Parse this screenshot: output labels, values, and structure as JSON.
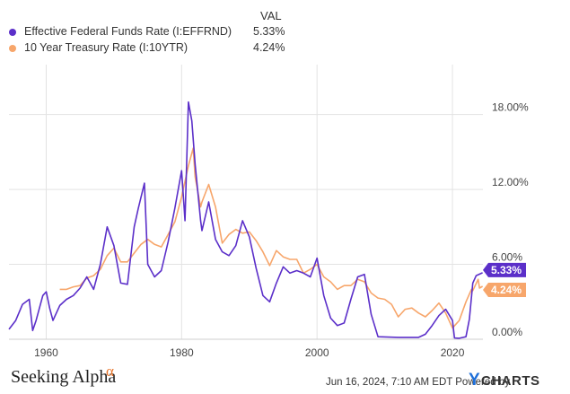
{
  "legend": {
    "header": "VAL",
    "items": [
      {
        "label": "Effective Federal Funds Rate (I:EFFRND)",
        "value": "5.33%",
        "color": "#5b2fc9"
      },
      {
        "label": "10 Year Treasury Rate (I:10YTR)",
        "value": "4.24%",
        "color": "#f7a66b"
      }
    ]
  },
  "footer": {
    "brand": "Seeking Alpha",
    "brand_mark": "α",
    "timestamp": "Jun 16, 2024, 7:10 AM EDT Powered by",
    "ycharts_y": "Y",
    "ycharts_rest": "CHARTS"
  },
  "chart_data": {
    "type": "line",
    "xlim": [
      1954.5,
      2024.5
    ],
    "ylim": [
      0,
      22
    ],
    "x_ticks": [
      1960,
      1980,
      2000,
      2020
    ],
    "x_tick_labels": [
      "1960",
      "1980",
      "2000",
      "2020"
    ],
    "y_ticks": [
      0,
      6,
      12,
      18
    ],
    "y_tick_labels": [
      "0.00%",
      "6.00%",
      "12.00%",
      "18.00%"
    ],
    "grid": true,
    "end_labels": [
      "5.33%",
      "4.24%"
    ],
    "series": [
      {
        "name": "Effective Federal Funds Rate (I:EFFRND)",
        "color": "#5b2fc9",
        "points": [
          [
            1954.5,
            0.8
          ],
          [
            1955.5,
            1.5
          ],
          [
            1956.5,
            2.8
          ],
          [
            1957.5,
            3.2
          ],
          [
            1958.0,
            0.7
          ],
          [
            1958.5,
            1.5
          ],
          [
            1959.5,
            3.5
          ],
          [
            1960.0,
            3.8
          ],
          [
            1960.5,
            2.5
          ],
          [
            1961.0,
            1.5
          ],
          [
            1962.0,
            2.7
          ],
          [
            1963.0,
            3.2
          ],
          [
            1964.0,
            3.5
          ],
          [
            1965.0,
            4.1
          ],
          [
            1966.0,
            5.0
          ],
          [
            1967.0,
            4.0
          ],
          [
            1968.0,
            6.0
          ],
          [
            1969.0,
            9.0
          ],
          [
            1970.0,
            7.5
          ],
          [
            1971.0,
            4.5
          ],
          [
            1972.0,
            4.4
          ],
          [
            1973.0,
            9.0
          ],
          [
            1973.6,
            10.5
          ],
          [
            1974.5,
            12.5
          ],
          [
            1975.0,
            6.0
          ],
          [
            1976.0,
            5.0
          ],
          [
            1977.0,
            5.5
          ],
          [
            1978.0,
            7.8
          ],
          [
            1979.0,
            10.5
          ],
          [
            1980.0,
            13.5
          ],
          [
            1980.5,
            9.5
          ],
          [
            1981.0,
            19.0
          ],
          [
            1981.5,
            17.5
          ],
          [
            1982.0,
            14.0
          ],
          [
            1982.8,
            9.5
          ],
          [
            1983.0,
            8.7
          ],
          [
            1984.0,
            11.0
          ],
          [
            1985.0,
            8.0
          ],
          [
            1986.0,
            7.0
          ],
          [
            1987.0,
            6.7
          ],
          [
            1988.0,
            7.5
          ],
          [
            1989.0,
            9.5
          ],
          [
            1990.0,
            8.2
          ],
          [
            1991.0,
            5.7
          ],
          [
            1992.0,
            3.5
          ],
          [
            1993.0,
            3.0
          ],
          [
            1994.0,
            4.5
          ],
          [
            1995.0,
            5.8
          ],
          [
            1996.0,
            5.3
          ],
          [
            1997.0,
            5.5
          ],
          [
            1998.0,
            5.3
          ],
          [
            1999.0,
            5.0
          ],
          [
            2000.0,
            6.5
          ],
          [
            2001.0,
            3.5
          ],
          [
            2002.0,
            1.7
          ],
          [
            2003.0,
            1.1
          ],
          [
            2004.0,
            1.3
          ],
          [
            2005.0,
            3.2
          ],
          [
            2006.0,
            5.0
          ],
          [
            2007.0,
            5.2
          ],
          [
            2008.0,
            2.0
          ],
          [
            2009.0,
            0.2
          ],
          [
            2012.0,
            0.15
          ],
          [
            2015.0,
            0.15
          ],
          [
            2016.0,
            0.4
          ],
          [
            2017.0,
            1.1
          ],
          [
            2018.0,
            1.9
          ],
          [
            2019.0,
            2.4
          ],
          [
            2020.0,
            1.5
          ],
          [
            2020.3,
            0.1
          ],
          [
            2021.0,
            0.08
          ],
          [
            2022.0,
            0.2
          ],
          [
            2022.5,
            1.6
          ],
          [
            2023.0,
            4.5
          ],
          [
            2023.5,
            5.1
          ],
          [
            2024.45,
            5.33
          ]
        ]
      },
      {
        "name": "10 Year Treasury Rate (I:10YTR)",
        "color": "#f7a66b",
        "points": [
          [
            1962.0,
            4.0
          ],
          [
            1963.0,
            4.0
          ],
          [
            1964.0,
            4.2
          ],
          [
            1965.0,
            4.3
          ],
          [
            1966.0,
            4.9
          ],
          [
            1967.0,
            5.1
          ],
          [
            1968.0,
            5.6
          ],
          [
            1969.0,
            6.7
          ],
          [
            1970.0,
            7.3
          ],
          [
            1971.0,
            6.2
          ],
          [
            1972.0,
            6.2
          ],
          [
            1973.0,
            6.9
          ],
          [
            1974.0,
            7.6
          ],
          [
            1975.0,
            8.0
          ],
          [
            1976.0,
            7.6
          ],
          [
            1977.0,
            7.4
          ],
          [
            1978.0,
            8.4
          ],
          [
            1979.0,
            9.4
          ],
          [
            1980.0,
            11.4
          ],
          [
            1981.0,
            13.9
          ],
          [
            1981.7,
            15.3
          ],
          [
            1982.0,
            13.0
          ],
          [
            1982.8,
            10.6
          ],
          [
            1983.0,
            11.0
          ],
          [
            1984.0,
            12.4
          ],
          [
            1985.0,
            10.6
          ],
          [
            1986.0,
            7.7
          ],
          [
            1987.0,
            8.4
          ],
          [
            1988.0,
            8.8
          ],
          [
            1989.0,
            8.5
          ],
          [
            1990.0,
            8.6
          ],
          [
            1991.0,
            7.9
          ],
          [
            1992.0,
            7.0
          ],
          [
            1993.0,
            5.9
          ],
          [
            1994.0,
            7.1
          ],
          [
            1995.0,
            6.6
          ],
          [
            1996.0,
            6.4
          ],
          [
            1997.0,
            6.4
          ],
          [
            1998.0,
            5.3
          ],
          [
            1999.0,
            5.6
          ],
          [
            2000.0,
            6.0
          ],
          [
            2001.0,
            5.0
          ],
          [
            2002.0,
            4.6
          ],
          [
            2003.0,
            4.0
          ],
          [
            2004.0,
            4.3
          ],
          [
            2005.0,
            4.3
          ],
          [
            2006.0,
            4.8
          ],
          [
            2007.0,
            4.6
          ],
          [
            2008.0,
            3.7
          ],
          [
            2009.0,
            3.3
          ],
          [
            2010.0,
            3.2
          ],
          [
            2011.0,
            2.8
          ],
          [
            2012.0,
            1.8
          ],
          [
            2013.0,
            2.4
          ],
          [
            2014.0,
            2.5
          ],
          [
            2015.0,
            2.1
          ],
          [
            2016.0,
            1.8
          ],
          [
            2017.0,
            2.3
          ],
          [
            2018.0,
            2.9
          ],
          [
            2019.0,
            2.1
          ],
          [
            2020.0,
            0.9
          ],
          [
            2021.0,
            1.5
          ],
          [
            2022.0,
            3.0
          ],
          [
            2022.8,
            4.0
          ],
          [
            2023.0,
            3.9
          ],
          [
            2023.8,
            4.8
          ],
          [
            2024.0,
            4.1
          ],
          [
            2024.45,
            4.24
          ]
        ]
      }
    ]
  }
}
